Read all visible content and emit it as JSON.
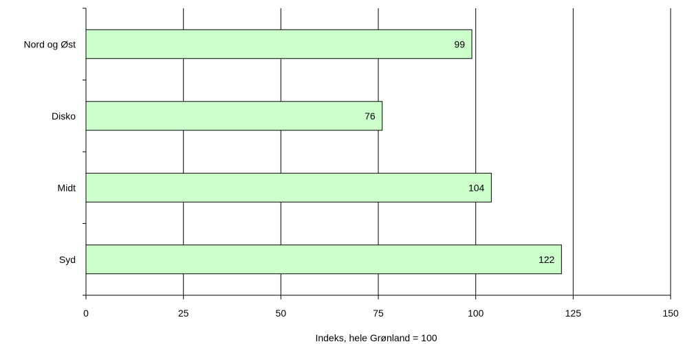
{
  "chart_data": {
    "type": "bar",
    "orientation": "horizontal",
    "categories": [
      "Nord og Øst",
      "Disko",
      "Midt",
      "Syd"
    ],
    "values": [
      99,
      76,
      104,
      122
    ],
    "data_labels": [
      "99",
      "76",
      "104",
      "122"
    ],
    "xlabel": "Indeks, hele Grønland = 100",
    "xlim": [
      0,
      150
    ],
    "xticks": [
      "0",
      "25",
      "50",
      "75",
      "100",
      "125",
      "150"
    ],
    "grid": "vertical",
    "bar_color": "#ccffcc",
    "bar_edge_color": "#000000",
    "legend": "none"
  }
}
